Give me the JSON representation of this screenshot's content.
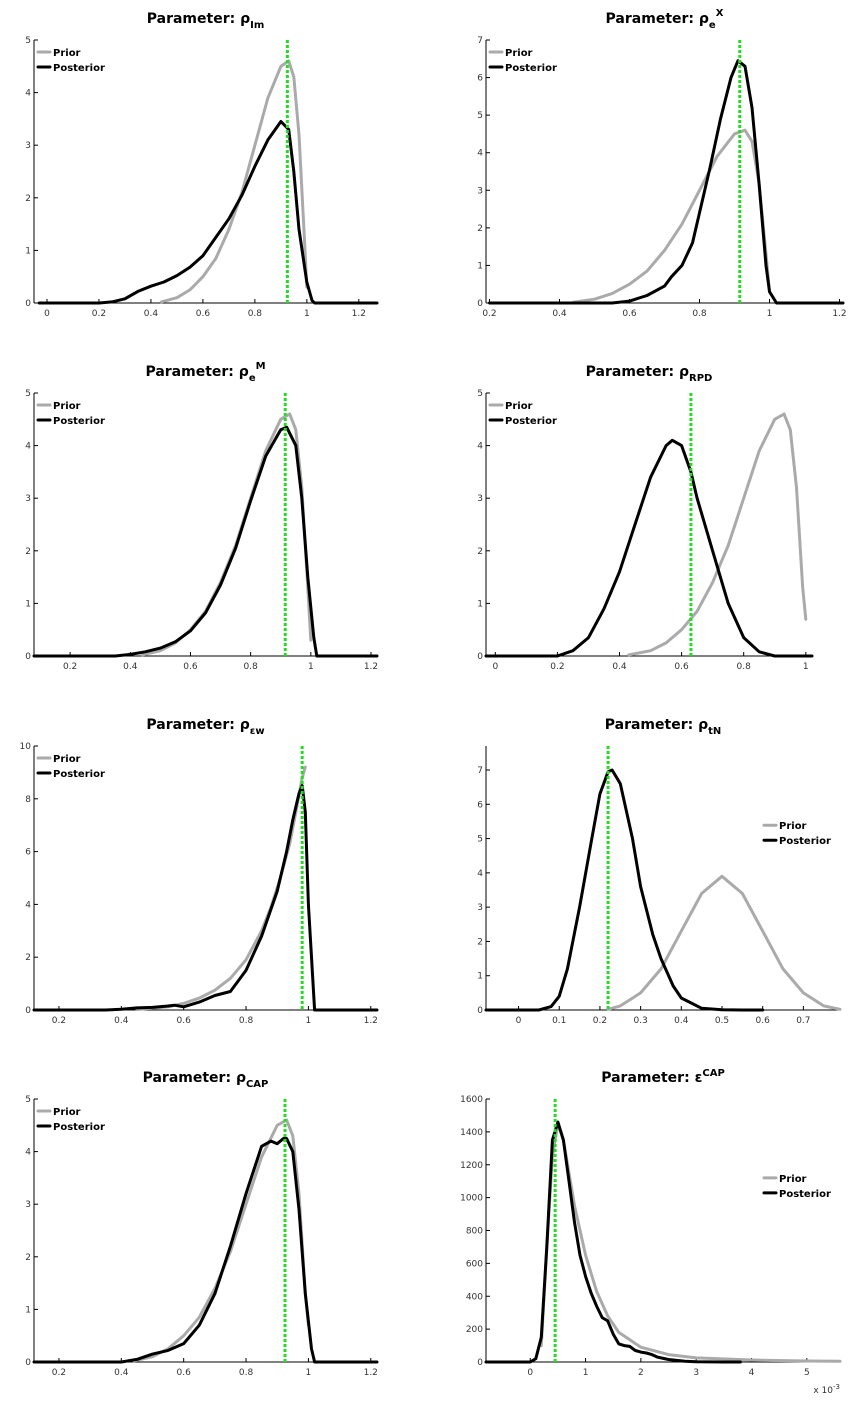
{
  "colors": {
    "prior": "#aaaaaa",
    "posterior": "#000000",
    "mode": "#22dd22"
  },
  "chart_data": [
    {
      "type": "line",
      "title": {
        "prefix": "Parameter: ",
        "symbol": "ρ",
        "sub": "Im",
        "sup": ""
      },
      "xlim": [
        -0.05,
        1.27
      ],
      "ylim": [
        0,
        5
      ],
      "xticks": [
        0,
        0.2,
        0.4,
        0.6,
        0.8,
        1,
        1.2
      ],
      "yticks": [
        0,
        1,
        2,
        3,
        4,
        5
      ],
      "xtick_labels": [
        "0",
        "0.2",
        "0.4",
        "0.6",
        "0.8",
        "1",
        "1.2"
      ],
      "ytick_labels": [
        "0",
        "1",
        "2",
        "3",
        "4",
        "5"
      ],
      "legend": {
        "position": "top-left",
        "entries": [
          "Prior",
          "Posterior"
        ]
      },
      "mode_line_x": 0.925,
      "series": [
        {
          "name": "Prior",
          "x": [
            0.44,
            0.5,
            0.55,
            0.6,
            0.65,
            0.7,
            0.75,
            0.8,
            0.85,
            0.9,
            0.93,
            0.95,
            0.97,
            0.99,
            1.0
          ],
          "y": [
            0.02,
            0.1,
            0.25,
            0.5,
            0.85,
            1.4,
            2.1,
            3.0,
            3.9,
            4.5,
            4.6,
            4.3,
            3.2,
            1.3,
            0.3
          ]
        },
        {
          "name": "Posterior",
          "x": [
            -0.03,
            0.2,
            0.25,
            0.3,
            0.35,
            0.4,
            0.45,
            0.5,
            0.55,
            0.6,
            0.65,
            0.7,
            0.75,
            0.8,
            0.85,
            0.9,
            0.93,
            0.95,
            0.97,
            1.0,
            1.02,
            1.03,
            1.27
          ],
          "y": [
            0,
            0,
            0.02,
            0.08,
            0.22,
            0.32,
            0.4,
            0.52,
            0.68,
            0.9,
            1.25,
            1.6,
            2.05,
            2.6,
            3.1,
            3.45,
            3.3,
            2.5,
            1.4,
            0.4,
            0.05,
            0,
            0
          ]
        }
      ]
    },
    {
      "type": "line",
      "title": {
        "prefix": "Parameter: ",
        "symbol": "ρ",
        "sub": "e",
        "sup": "X"
      },
      "xlim": [
        0.19,
        1.21
      ],
      "ylim": [
        0,
        7
      ],
      "xticks": [
        0.2,
        0.4,
        0.6,
        0.8,
        1,
        1.2
      ],
      "yticks": [
        0,
        1,
        2,
        3,
        4,
        5,
        6,
        7
      ],
      "xtick_labels": [
        "0.2",
        "0.4",
        "0.6",
        "0.8",
        "1",
        "1.2"
      ],
      "ytick_labels": [
        "0",
        "1",
        "2",
        "3",
        "4",
        "5",
        "6",
        "7"
      ],
      "legend": {
        "position": "top-left",
        "entries": [
          "Prior",
          "Posterior"
        ]
      },
      "mode_line_x": 0.915,
      "series": [
        {
          "name": "Prior",
          "x": [
            0.44,
            0.5,
            0.55,
            0.6,
            0.65,
            0.7,
            0.75,
            0.8,
            0.85,
            0.9,
            0.93,
            0.95,
            0.97,
            0.99,
            1.0
          ],
          "y": [
            0.02,
            0.1,
            0.25,
            0.5,
            0.85,
            1.4,
            2.1,
            3.0,
            3.9,
            4.5,
            4.6,
            4.3,
            3.2,
            1.3,
            0.3
          ]
        },
        {
          "name": "Posterior",
          "x": [
            0.2,
            0.55,
            0.6,
            0.65,
            0.7,
            0.72,
            0.75,
            0.78,
            0.8,
            0.83,
            0.86,
            0.89,
            0.91,
            0.93,
            0.95,
            0.97,
            0.99,
            1.0,
            1.02,
            1.21
          ],
          "y": [
            0,
            0,
            0.05,
            0.2,
            0.45,
            0.7,
            1.0,
            1.6,
            2.4,
            3.6,
            4.9,
            6.0,
            6.45,
            6.3,
            5.2,
            3.2,
            1.0,
            0.3,
            0,
            0
          ]
        }
      ]
    },
    {
      "type": "line",
      "title": {
        "prefix": "Parameter: ",
        "symbol": "ρ",
        "sub": "e",
        "sup": "M"
      },
      "xlim": [
        0.08,
        1.22
      ],
      "ylim": [
        0,
        5
      ],
      "xticks": [
        0.2,
        0.4,
        0.6,
        0.8,
        1,
        1.2
      ],
      "yticks": [
        0,
        1,
        2,
        3,
        4,
        5
      ],
      "xtick_labels": [
        "0.2",
        "0.4",
        "0.6",
        "0.8",
        "1",
        "1.2"
      ],
      "ytick_labels": [
        "0",
        "1",
        "2",
        "3",
        "4",
        "5"
      ],
      "legend": {
        "position": "top-left",
        "entries": [
          "Prior",
          "Posterior"
        ]
      },
      "mode_line_x": 0.915,
      "series": [
        {
          "name": "Prior",
          "x": [
            0.44,
            0.5,
            0.55,
            0.6,
            0.65,
            0.7,
            0.75,
            0.8,
            0.85,
            0.9,
            0.93,
            0.95,
            0.97,
            0.99,
            1.0
          ],
          "y": [
            0.02,
            0.1,
            0.25,
            0.5,
            0.85,
            1.4,
            2.1,
            3.0,
            3.9,
            4.5,
            4.6,
            4.3,
            3.2,
            1.3,
            0.3
          ]
        },
        {
          "name": "Posterior",
          "x": [
            0.08,
            0.35,
            0.4,
            0.45,
            0.5,
            0.55,
            0.6,
            0.65,
            0.7,
            0.75,
            0.8,
            0.85,
            0.9,
            0.92,
            0.95,
            0.97,
            0.99,
            1.01,
            1.02,
            1.22
          ],
          "y": [
            0,
            0,
            0.03,
            0.08,
            0.15,
            0.27,
            0.48,
            0.82,
            1.35,
            2.05,
            2.95,
            3.8,
            4.3,
            4.35,
            4.0,
            3.0,
            1.5,
            0.35,
            0,
            0
          ]
        }
      ]
    },
    {
      "type": "line",
      "title": {
        "prefix": "Parameter: ",
        "symbol": "ρ",
        "sub": "RPD",
        "sup": ""
      },
      "xlim": [
        -0.03,
        1.02
      ],
      "ylim": [
        0,
        5
      ],
      "xticks": [
        0,
        0.2,
        0.4,
        0.6,
        0.8,
        1
      ],
      "yticks": [
        0,
        1,
        2,
        3,
        4,
        5
      ],
      "xtick_labels": [
        "0",
        "0.2",
        "0.4",
        "0.6",
        "0.8",
        "1"
      ],
      "ytick_labels": [
        "0",
        "1",
        "2",
        "3",
        "4",
        "5"
      ],
      "legend": {
        "position": "top-left",
        "entries": [
          "Prior",
          "Posterior"
        ]
      },
      "mode_line_x": 0.63,
      "series": [
        {
          "name": "Prior",
          "x": [
            0.43,
            0.5,
            0.55,
            0.6,
            0.65,
            0.7,
            0.75,
            0.8,
            0.85,
            0.9,
            0.93,
            0.95,
            0.97,
            0.99,
            1.0
          ],
          "y": [
            0.02,
            0.1,
            0.25,
            0.5,
            0.85,
            1.4,
            2.1,
            3.0,
            3.9,
            4.5,
            4.6,
            4.3,
            3.2,
            1.3,
            0.7
          ]
        },
        {
          "name": "Posterior",
          "x": [
            -0.03,
            0.2,
            0.25,
            0.3,
            0.35,
            0.4,
            0.45,
            0.5,
            0.55,
            0.57,
            0.6,
            0.63,
            0.65,
            0.7,
            0.75,
            0.8,
            0.85,
            0.9,
            1.02
          ],
          "y": [
            0,
            0,
            0.1,
            0.35,
            0.9,
            1.6,
            2.5,
            3.4,
            4.0,
            4.1,
            4.0,
            3.5,
            3.0,
            2.0,
            1.0,
            0.35,
            0.08,
            0,
            0
          ]
        }
      ]
    },
    {
      "type": "line",
      "title": {
        "prefix": "Parameter: ",
        "symbol": "ρ",
        "sub": "εw",
        "sup": ""
      },
      "xlim": [
        0.12,
        1.22
      ],
      "ylim": [
        0,
        10
      ],
      "xticks": [
        0.2,
        0.4,
        0.6,
        0.8,
        1,
        1.2
      ],
      "yticks": [
        0,
        2,
        4,
        6,
        8,
        10
      ],
      "xtick_labels": [
        "0.2",
        "0.4",
        "0.6",
        "0.8",
        "1",
        "1.2"
      ],
      "ytick_labels": [
        "0",
        "2",
        "4",
        "6",
        "8",
        "10"
      ],
      "legend": {
        "position": "top-left",
        "entries": [
          "Prior",
          "Posterior"
        ]
      },
      "mode_line_x": 0.98,
      "series": [
        {
          "name": "Prior",
          "x": [
            0.45,
            0.55,
            0.6,
            0.65,
            0.7,
            0.75,
            0.8,
            0.85,
            0.88,
            0.91,
            0.94,
            0.96,
            0.98,
            0.99
          ],
          "y": [
            0.02,
            0.12,
            0.25,
            0.45,
            0.75,
            1.2,
            1.9,
            3.0,
            3.9,
            5.0,
            6.3,
            7.5,
            8.8,
            9.2
          ]
        },
        {
          "name": "Posterior",
          "x": [
            0.12,
            0.35,
            0.4,
            0.45,
            0.5,
            0.55,
            0.57,
            0.6,
            0.65,
            0.7,
            0.75,
            0.8,
            0.85,
            0.9,
            0.93,
            0.95,
            0.97,
            0.98,
            0.99,
            1.0,
            1.02,
            1.22
          ],
          "y": [
            0,
            0,
            0.03,
            0.08,
            0.1,
            0.15,
            0.18,
            0.12,
            0.3,
            0.55,
            0.7,
            1.5,
            2.8,
            4.5,
            6.0,
            7.2,
            8.2,
            8.5,
            7.5,
            4.0,
            0,
            0
          ]
        }
      ]
    },
    {
      "type": "line",
      "title": {
        "prefix": "Parameter: ",
        "symbol": "ρ",
        "sub": "tN",
        "sup": ""
      },
      "xlim": [
        -0.08,
        0.79
      ],
      "ylim": [
        0,
        7.7
      ],
      "xticks": [
        0,
        0.1,
        0.2,
        0.3,
        0.4,
        0.5,
        0.6,
        0.7
      ],
      "yticks": [
        0,
        1,
        2,
        3,
        4,
        5,
        6,
        7
      ],
      "xtick_labels": [
        "0",
        "0.1",
        "0.2",
        "0.3",
        "0.4",
        "0.5",
        "0.6",
        "0.7"
      ],
      "ytick_labels": [
        "0",
        "1",
        "2",
        "3",
        "4",
        "5",
        "6",
        "7"
      ],
      "legend": {
        "position": "right",
        "entries": [
          "Prior",
          "Posterior"
        ]
      },
      "mode_line_x": 0.22,
      "series": [
        {
          "name": "Prior",
          "x": [
            0.22,
            0.25,
            0.3,
            0.35,
            0.4,
            0.45,
            0.5,
            0.55,
            0.6,
            0.65,
            0.7,
            0.75,
            0.79
          ],
          "y": [
            0.02,
            0.12,
            0.5,
            1.2,
            2.3,
            3.4,
            3.9,
            3.4,
            2.3,
            1.2,
            0.5,
            0.12,
            0.02
          ]
        },
        {
          "name": "Posterior",
          "x": [
            -0.08,
            0.05,
            0.08,
            0.1,
            0.12,
            0.15,
            0.18,
            0.2,
            0.22,
            0.23,
            0.25,
            0.28,
            0.3,
            0.33,
            0.35,
            0.38,
            0.4,
            0.45,
            0.5,
            0.55,
            0.6
          ],
          "y": [
            0,
            0,
            0.1,
            0.4,
            1.2,
            3.0,
            5.0,
            6.3,
            6.95,
            7.0,
            6.6,
            5.0,
            3.6,
            2.2,
            1.5,
            0.7,
            0.35,
            0.05,
            0.01,
            0,
            0
          ]
        }
      ]
    },
    {
      "type": "line",
      "title": {
        "prefix": "Parameter: ",
        "symbol": "ρ",
        "sub": "CAP",
        "sup": ""
      },
      "xlim": [
        0.12,
        1.22
      ],
      "ylim": [
        0,
        5
      ],
      "xticks": [
        0.2,
        0.4,
        0.6,
        0.8,
        1,
        1.2
      ],
      "yticks": [
        0,
        1,
        2,
        3,
        4,
        5
      ],
      "xtick_labels": [
        "0.2",
        "0.4",
        "0.6",
        "0.8",
        "1",
        "1.2"
      ],
      "ytick_labels": [
        "0",
        "1",
        "2",
        "3",
        "4",
        "5"
      ],
      "legend": {
        "position": "top-left",
        "entries": [
          "Prior",
          "Posterior"
        ]
      },
      "mode_line_x": 0.925,
      "series": [
        {
          "name": "Prior",
          "x": [
            0.44,
            0.5,
            0.55,
            0.6,
            0.65,
            0.7,
            0.75,
            0.8,
            0.85,
            0.9,
            0.93,
            0.95,
            0.97,
            0.99,
            1.0
          ],
          "y": [
            0.02,
            0.1,
            0.25,
            0.5,
            0.85,
            1.4,
            2.1,
            3.0,
            3.9,
            4.5,
            4.6,
            4.3,
            3.2,
            1.3,
            0.7
          ]
        },
        {
          "name": "Posterior",
          "x": [
            0.12,
            0.4,
            0.45,
            0.5,
            0.55,
            0.6,
            0.65,
            0.7,
            0.75,
            0.8,
            0.85,
            0.88,
            0.9,
            0.92,
            0.93,
            0.95,
            0.97,
            0.99,
            1.01,
            1.02,
            1.22
          ],
          "y": [
            0,
            0,
            0.05,
            0.15,
            0.22,
            0.35,
            0.7,
            1.3,
            2.2,
            3.2,
            4.1,
            4.2,
            4.15,
            4.25,
            4.25,
            4.0,
            2.9,
            1.3,
            0.25,
            0,
            0
          ]
        }
      ]
    },
    {
      "type": "line",
      "title": {
        "prefix": "Parameter: ",
        "symbol": "ε",
        "sub": "",
        "sup": "CAP"
      },
      "xlim": [
        -0.8,
        5.6
      ],
      "ylim": [
        0,
        1600
      ],
      "xticks": [
        0,
        1,
        2,
        3,
        4,
        5
      ],
      "yticks": [
        0,
        200,
        400,
        600,
        800,
        1000,
        1200,
        1400,
        1600
      ],
      "xtick_labels": [
        "0",
        "1",
        "2",
        "3",
        "4",
        "5"
      ],
      "ytick_labels": [
        "0",
        "200",
        "400",
        "600",
        "800",
        "1000",
        "1200",
        "1400",
        "1600"
      ],
      "x_multiplier": "x 10",
      "x_multiplier_exp": "-3",
      "legend": {
        "position": "right",
        "entries": [
          "Prior",
          "Posterior"
        ]
      },
      "mode_line_x": 0.45,
      "series": [
        {
          "name": "Prior",
          "x": [
            0.2,
            0.3,
            0.4,
            0.5,
            0.6,
            0.7,
            0.8,
            1.0,
            1.2,
            1.4,
            1.6,
            2.0,
            2.5,
            3.0,
            4.0,
            5.0,
            5.6
          ],
          "y": [
            100,
            700,
            1250,
            1450,
            1350,
            1150,
            950,
            650,
            430,
            280,
            180,
            90,
            45,
            25,
            12,
            6,
            4
          ]
        },
        {
          "name": "Posterior",
          "x": [
            -0.8,
            0.0,
            0.1,
            0.2,
            0.3,
            0.4,
            0.5,
            0.6,
            0.7,
            0.8,
            0.9,
            1.0,
            1.1,
            1.2,
            1.3,
            1.4,
            1.5,
            1.6,
            1.7,
            1.8,
            1.9,
            2.0,
            2.1,
            2.2,
            2.3,
            2.5,
            2.8,
            3.0,
            3.5,
            3.8
          ],
          "y": [
            0,
            0,
            20,
            150,
            700,
            1350,
            1460,
            1350,
            1100,
            850,
            650,
            520,
            420,
            340,
            270,
            250,
            170,
            110,
            100,
            95,
            70,
            60,
            55,
            45,
            30,
            15,
            5,
            2,
            0,
            0
          ]
        }
      ]
    }
  ]
}
